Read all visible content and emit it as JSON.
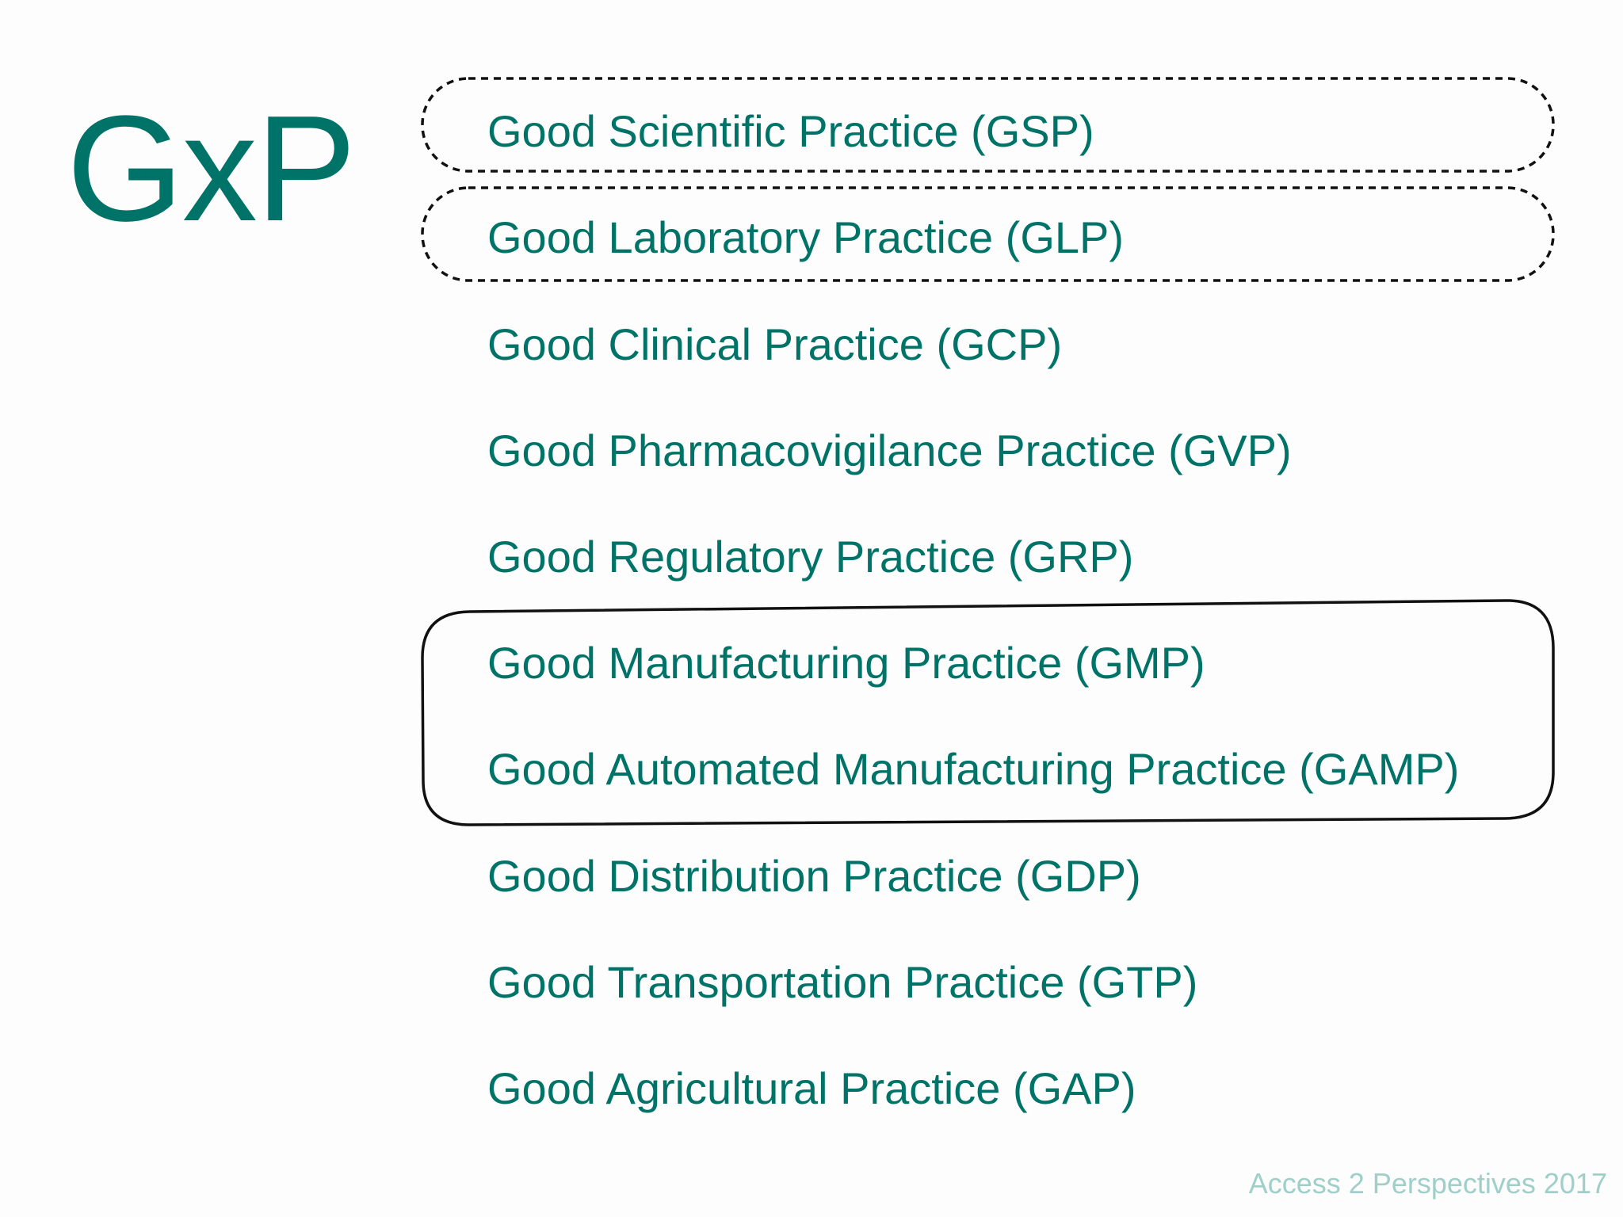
{
  "slide": {
    "title": "GxP",
    "footer": "Access 2 Perspectives 2017",
    "colors": {
      "accent": "#007368",
      "footer": "#9fcfc8",
      "outline": "#111111"
    },
    "items": [
      "Good Scientific Practice (GSP)",
      "Good Laboratory Practice (GLP)",
      "Good Clinical Practice (GCP)",
      "Good Pharmacovigilance Practice (GVP)",
      "Good Regulatory Practice (GRP)",
      "Good Manufacturing Practice (GMP)",
      "Good Automated Manufacturing Practice (GAMP)",
      "Good Distribution Practice (GDP)",
      "Good Transportation Practice (GTP)",
      "Good Agricultural Practice (GAP)"
    ]
  }
}
